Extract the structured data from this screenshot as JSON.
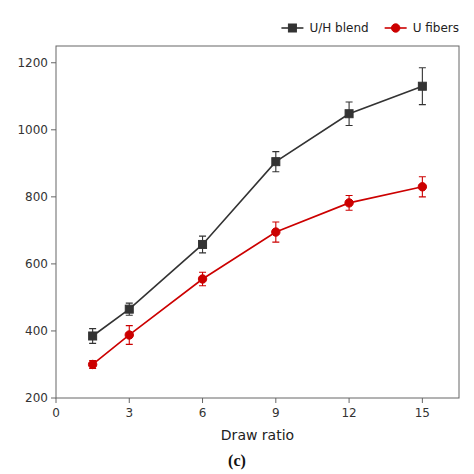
{
  "chart_data": {
    "type": "line",
    "title": "(c)",
    "xlabel": "Draw ratio",
    "x": [
      1.5,
      3,
      6,
      9,
      12,
      15
    ],
    "xlim": [
      0,
      16.5
    ],
    "xticks": [
      0,
      3,
      6,
      9,
      12,
      15
    ],
    "ylim": [
      200,
      1250
    ],
    "yticks": [
      200,
      400,
      600,
      800,
      1000,
      1200
    ],
    "grid": false,
    "legend": "upper right",
    "series": [
      {
        "name": "U/H blend",
        "color": "#333333",
        "marker": "square",
        "values": [
          385,
          465,
          658,
          905,
          1048,
          1130
        ],
        "errors": [
          22,
          18,
          25,
          30,
          35,
          55
        ]
      },
      {
        "name": "U fibers",
        "color": "#cc0000",
        "marker": "circle",
        "values": [
          300,
          388,
          555,
          695,
          782,
          830
        ],
        "errors": [
          12,
          28,
          20,
          30,
          22,
          30
        ]
      }
    ]
  }
}
